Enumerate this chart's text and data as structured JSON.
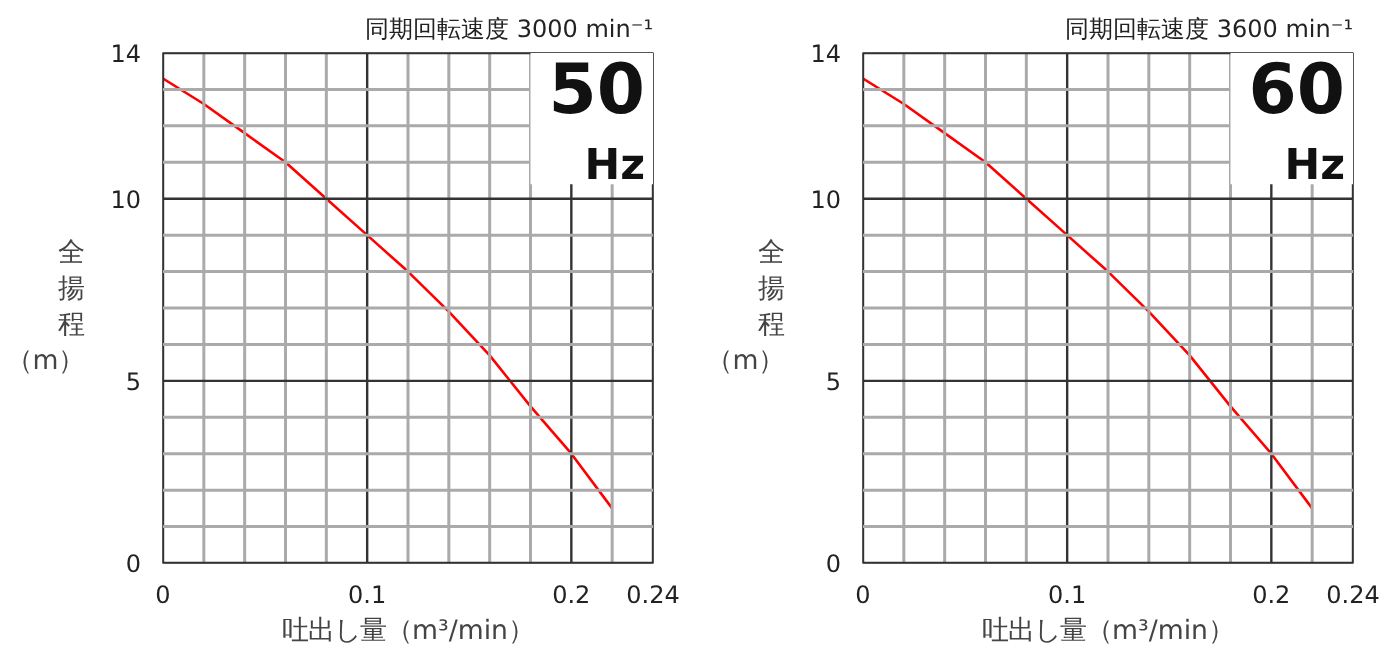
{
  "chart_data": [
    {
      "type": "line",
      "title": "同期回転速度 3000 min⁻¹",
      "annotations": [
        "50",
        "Hz"
      ],
      "xlabel": "吐出し量（m³/min）",
      "ylabel": "全揚程（m）",
      "x": [
        0,
        0.02,
        0.04,
        0.06,
        0.08,
        0.1,
        0.12,
        0.14,
        0.16,
        0.18,
        0.2,
        0.22
      ],
      "series": [
        {
          "color": "#ff0000",
          "values": [
            13.3,
            12.6,
            11.8,
            11.0,
            10.0,
            9.0,
            8.0,
            6.9,
            5.7,
            4.3,
            3.0,
            1.5
          ]
        }
      ],
      "xlim": [
        0,
        0.24
      ],
      "ylim": [
        0,
        14
      ],
      "xticks": [
        0,
        {
          "value": 0.02,
          "label": null
        },
        {
          "value": 0.04,
          "label": null
        },
        {
          "value": 0.06,
          "label": null
        },
        {
          "value": 0.08,
          "label": null
        },
        0.1,
        {
          "value": 0.12,
          "label": null
        },
        {
          "value": 0.14,
          "label": null
        },
        {
          "value": 0.16,
          "label": null
        },
        {
          "value": 0.18,
          "label": null
        },
        0.2,
        {
          "value": 0.22,
          "label": null
        },
        0.24
      ],
      "yticks": [
        0,
        {
          "value": 1,
          "label": null
        },
        {
          "value": 2,
          "label": null
        },
        {
          "value": 3,
          "label": null
        },
        {
          "value": 4,
          "label": null
        },
        5,
        {
          "value": 6,
          "label": null
        },
        {
          "value": 7,
          "label": null
        },
        {
          "value": 8,
          "label": null
        },
        {
          "value": 9,
          "label": null
        },
        10,
        {
          "value": 11,
          "label": null
        },
        {
          "value": 12,
          "label": null
        },
        {
          "value": 13,
          "label": null
        },
        14
      ],
      "grid": true,
      "marker": "none",
      "line_style": "solid"
    },
    {
      "type": "line",
      "title": "同期回転速度 3600 min⁻¹",
      "annotations": [
        "60",
        "Hz"
      ],
      "xlabel": "吐出し量（m³/min）",
      "ylabel": "全揚程（m）",
      "x": [
        0,
        0.02,
        0.04,
        0.06,
        0.08,
        0.1,
        0.12,
        0.14,
        0.16,
        0.18,
        0.2,
        0.22
      ],
      "series": [
        {
          "color": "#ff0000",
          "values": [
            13.3,
            12.6,
            11.8,
            11.0,
            10.0,
            9.0,
            8.0,
            6.9,
            5.7,
            4.3,
            3.0,
            1.5
          ]
        }
      ],
      "xlim": [
        0,
        0.24
      ],
      "ylim": [
        0,
        14
      ],
      "xticks": [
        0,
        {
          "value": 0.02,
          "label": null
        },
        {
          "value": 0.04,
          "label": null
        },
        {
          "value": 0.06,
          "label": null
        },
        {
          "value": 0.08,
          "label": null
        },
        0.1,
        {
          "value": 0.12,
          "label": null
        },
        {
          "value": 0.14,
          "label": null
        },
        {
          "value": 0.16,
          "label": null
        },
        {
          "value": 0.18,
          "label": null
        },
        0.2,
        {
          "value": 0.22,
          "label": null
        },
        0.24
      ],
      "yticks": [
        0,
        {
          "value": 1,
          "label": null
        },
        {
          "value": 2,
          "label": null
        },
        {
          "value": 3,
          "label": null
        },
        {
          "value": 4,
          "label": null
        },
        5,
        {
          "value": 6,
          "label": null
        },
        {
          "value": 7,
          "label": null
        },
        {
          "value": 8,
          "label": null
        },
        {
          "value": 9,
          "label": null
        },
        10,
        {
          "value": 11,
          "label": null
        },
        {
          "value": 12,
          "label": null
        },
        {
          "value": 13,
          "label": null
        },
        14
      ],
      "grid": true,
      "marker": "none",
      "line_style": "solid"
    }
  ]
}
